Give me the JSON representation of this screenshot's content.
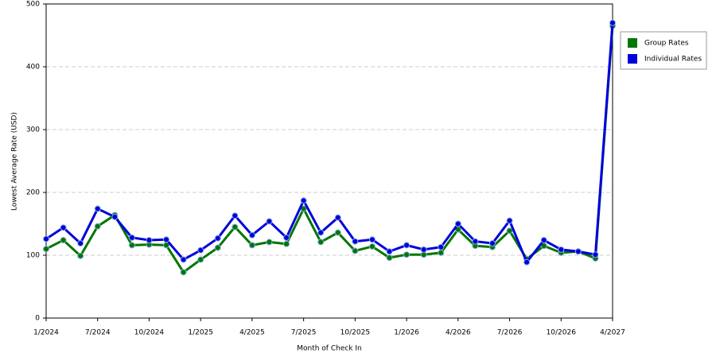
{
  "chart_data": {
    "type": "line",
    "y_label": "Lowest Average Rate (USD)",
    "x_label": "Month of Check In",
    "categories": [
      "1/2024",
      null,
      null,
      "7/2024",
      null,
      null,
      "10/2024",
      null,
      null,
      "1/2025",
      null,
      null,
      "4/2025",
      null,
      null,
      "7/2025",
      null,
      null,
      "10/2025",
      null,
      null,
      "1/2026",
      null,
      null,
      "4/2026",
      null,
      null,
      "7/2026",
      null,
      null,
      "10/2026",
      null,
      null,
      "4/2027"
    ],
    "series": [
      {
        "name": "Group Rates",
        "color": "#007700",
        "values": [
          110,
          124,
          99,
          146,
          164,
          116,
          117,
          116,
          73,
          93,
          112,
          145,
          116,
          121,
          118,
          174,
          121,
          136,
          107,
          114,
          96,
          101,
          101,
          104,
          141,
          115,
          113,
          139,
          94,
          115,
          104,
          106,
          95,
          465
        ]
      },
      {
        "name": "Individual Rates",
        "color": "#0000dd",
        "values": [
          126,
          144,
          119,
          174,
          161,
          128,
          124,
          125,
          93,
          108,
          127,
          163,
          132,
          154,
          128,
          187,
          136,
          160,
          122,
          125,
          106,
          116,
          109,
          113,
          150,
          122,
          119,
          155,
          89,
          124,
          109,
          106,
          101,
          470
        ]
      }
    ],
    "ylim": [
      0,
      500
    ],
    "yticks": [
      0,
      100,
      200,
      300,
      400,
      500
    ],
    "grid": true,
    "legend": "right"
  }
}
